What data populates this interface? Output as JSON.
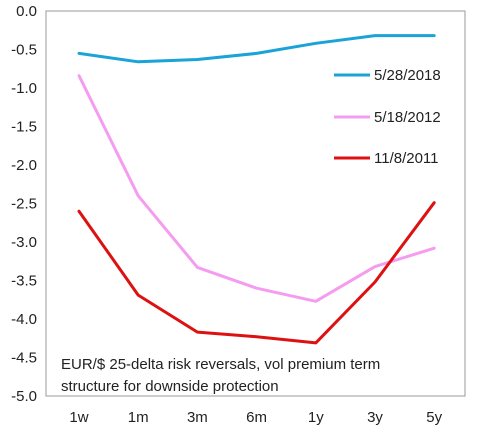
{
  "chart_data": {
    "type": "line",
    "categories": [
      "1w",
      "1m",
      "3m",
      "6m",
      "1y",
      "3y",
      "5y"
    ],
    "ylim": [
      -5.0,
      0.0
    ],
    "yticks": [
      "0.0",
      "-0.5",
      "-1.0",
      "-1.5",
      "-2.0",
      "-2.5",
      "-3.0",
      "-3.5",
      "-4.0",
      "-4.5",
      "-5.0"
    ],
    "ytick_values": [
      0,
      -0.5,
      -1.0,
      -1.5,
      -2.0,
      -2.5,
      -3.0,
      -3.5,
      -4.0,
      -4.5,
      -5.0
    ],
    "grid": false,
    "legend_position": "right",
    "annotation": [
      "EUR/$ 25-delta risk reversals, vol premium  term",
      "structure  for downside  protection"
    ],
    "series": [
      {
        "name": "5/28/2018",
        "color": "#1aa3d6",
        "values": [
          -0.55,
          -0.66,
          -0.63,
          -0.55,
          -0.42,
          -0.32,
          -0.32
        ]
      },
      {
        "name": "5/18/2012",
        "color": "#f59cf0",
        "values": [
          -0.84,
          -2.4,
          -3.33,
          -3.6,
          -3.77,
          -3.32,
          -3.08
        ]
      },
      {
        "name": "11/8/2011",
        "color": "#dd1111",
        "values": [
          -2.6,
          -3.69,
          -4.17,
          -4.23,
          -4.31,
          -3.52,
          -2.49
        ]
      }
    ]
  }
}
